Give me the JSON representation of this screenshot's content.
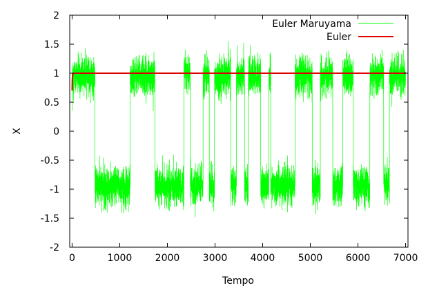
{
  "chart_data": {
    "type": "line",
    "xlabel": "Tempo",
    "ylabel": "X",
    "xlim": [
      -50,
      7050
    ],
    "ylim": [
      -2,
      2
    ],
    "xticks": [
      0,
      1000,
      2000,
      3000,
      4000,
      5000,
      6000,
      7000
    ],
    "yticks": [
      -2,
      -1.5,
      -1,
      -0.5,
      0,
      0.5,
      1,
      1.5,
      2
    ],
    "xtick_labels": [
      "0",
      "1000",
      "2000",
      "3000",
      "4000",
      "5000",
      "6000",
      "7000"
    ],
    "ytick_labels": [
      "-2",
      "-1.5",
      "-1",
      "-0.5",
      "0",
      "0.5",
      "1",
      "1.5",
      "2"
    ],
    "grid": false,
    "legend_position": "top-right",
    "series": [
      {
        "name": "Euler Maruyama",
        "color": "#00ff00",
        "note_regimes": "bistable noisy path switching between wells near +0.95 and -0.95",
        "regimes": [
          {
            "x0": 0,
            "x1": 480,
            "level": 0.95
          },
          {
            "x0": 480,
            "x1": 1220,
            "level": -0.95
          },
          {
            "x0": 1220,
            "x1": 1740,
            "level": 0.95
          },
          {
            "x0": 1740,
            "x1": 2350,
            "level": -0.95
          },
          {
            "x0": 2350,
            "x1": 2480,
            "level": 0.95
          },
          {
            "x0": 2480,
            "x1": 2750,
            "level": -0.95
          },
          {
            "x0": 2750,
            "x1": 2880,
            "level": 0.95
          },
          {
            "x0": 2880,
            "x1": 2990,
            "level": -0.95
          },
          {
            "x0": 2990,
            "x1": 3330,
            "level": 0.95
          },
          {
            "x0": 3330,
            "x1": 3450,
            "level": -0.95
          },
          {
            "x0": 3450,
            "x1": 3620,
            "level": 0.95
          },
          {
            "x0": 3620,
            "x1": 3700,
            "level": -0.95
          },
          {
            "x0": 3700,
            "x1": 3960,
            "level": 0.95
          },
          {
            "x0": 3960,
            "x1": 4130,
            "level": -0.95
          },
          {
            "x0": 4130,
            "x1": 4170,
            "level": 0.95
          },
          {
            "x0": 4170,
            "x1": 4680,
            "level": -0.95
          },
          {
            "x0": 4680,
            "x1": 5040,
            "level": 0.95
          },
          {
            "x0": 5040,
            "x1": 5210,
            "level": -0.95
          },
          {
            "x0": 5210,
            "x1": 5470,
            "level": 0.95
          },
          {
            "x0": 5470,
            "x1": 5680,
            "level": -0.95
          },
          {
            "x0": 5680,
            "x1": 5900,
            "level": 0.95
          },
          {
            "x0": 5900,
            "x1": 6250,
            "level": -0.95
          },
          {
            "x0": 6250,
            "x1": 6540,
            "level": 0.95
          },
          {
            "x0": 6540,
            "x1": 6660,
            "level": -0.95
          },
          {
            "x0": 6660,
            "x1": 6960,
            "level": 0.95
          },
          {
            "x0": 6960,
            "x1": 7000,
            "level": 0.9
          }
        ]
      },
      {
        "name": "Euler",
        "color": "#dd0000",
        "x": [
          0,
          5,
          15,
          40,
          7000
        ],
        "y": [
          0.7,
          0.9,
          0.99,
          1.0,
          1.0
        ]
      }
    ]
  }
}
